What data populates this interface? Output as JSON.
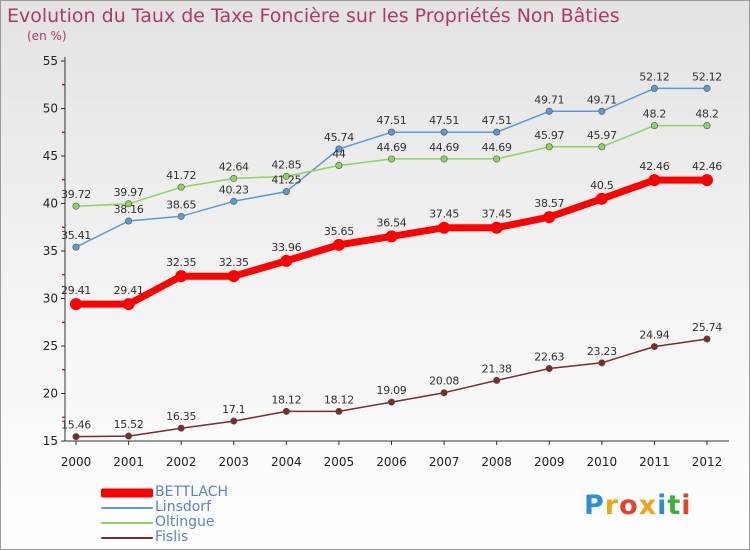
{
  "title": "Evolution du Taux de Taxe Foncière sur les Propriétés Non Bâties",
  "subtitle": "(en %)",
  "logo": {
    "text": "Proxiti",
    "colors": [
      "#2b8fd6",
      "#f1a415",
      "#e2442a",
      "#f1a415",
      "#2b8fd6",
      "#3aaf3a",
      "#e2442a"
    ]
  },
  "chart_data": {
    "type": "line",
    "x": [
      "2000",
      "2001",
      "2002",
      "2003",
      "2004",
      "2005",
      "2006",
      "2007",
      "2008",
      "2009",
      "2010",
      "2011",
      "2012"
    ],
    "ylim": [
      15,
      55
    ],
    "yticks": [
      15,
      20,
      25,
      30,
      35,
      40,
      45,
      50,
      55
    ],
    "grid": false,
    "legend_position": "bottom-left",
    "series": [
      {
        "name": "BETTLACH",
        "color": "#ff0000",
        "width": "thick",
        "values": [
          29.41,
          29.41,
          32.35,
          32.35,
          33.96,
          35.65,
          36.54,
          37.45,
          37.45,
          38.57,
          40.5,
          42.46,
          42.46
        ],
        "labels": [
          "29.41",
          "29.41",
          "32.35",
          "32.35",
          "33.96",
          "35.65",
          "36.54",
          "37.45",
          "37.45",
          "38.57",
          "40.5",
          "42.46",
          "42.46"
        ]
      },
      {
        "name": "Linsdorf",
        "color": "#5b9bd5",
        "width": "thin",
        "values": [
          35.41,
          38.16,
          38.65,
          40.23,
          41.25,
          45.74,
          47.51,
          47.51,
          47.51,
          49.71,
          49.71,
          52.12,
          52.12
        ],
        "labels": [
          "35.41",
          "38.16",
          "38.65",
          "40.23",
          "41.25",
          "45.74",
          "47.51",
          "47.51",
          "47.51",
          "49.71",
          "49.71",
          "52.12",
          "52.12"
        ]
      },
      {
        "name": "Oltingue",
        "color": "#8dd35f",
        "width": "thin",
        "values": [
          39.72,
          39.97,
          41.72,
          42.64,
          42.85,
          44,
          44.69,
          44.69,
          44.69,
          45.97,
          45.97,
          48.2,
          48.2
        ],
        "labels": [
          "39.72",
          "39.97",
          "41.72",
          "42.64",
          "42.85",
          "44",
          "44.69",
          "44.69",
          "44.69",
          "45.97",
          "45.97",
          "48.2",
          "48.2"
        ]
      },
      {
        "name": "Fislis",
        "color": "#7b2b2b",
        "width": "thin",
        "values": [
          15.46,
          15.52,
          16.35,
          17.1,
          18.12,
          18.12,
          19.09,
          20.08,
          21.38,
          22.63,
          23.23,
          24.94,
          25.74
        ],
        "labels": [
          "15.46",
          "15.52",
          "16.35",
          "17.1",
          "18.12",
          "18.12",
          "19.09",
          "20.08",
          "21.38",
          "22.63",
          "23.23",
          "24.94",
          "25.74"
        ]
      }
    ]
  }
}
